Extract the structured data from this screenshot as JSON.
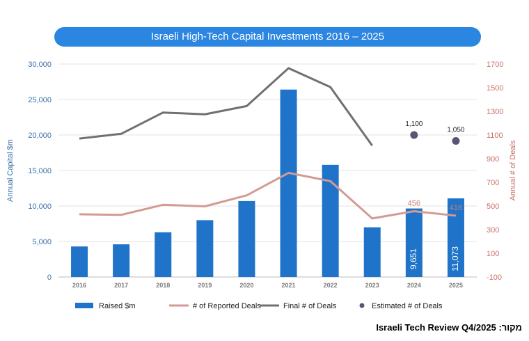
{
  "chart_data": {
    "type": "bar",
    "title": "Israeli High-Tech Capital Investments  2016 – 2025",
    "categories": [
      "2016",
      "2017",
      "2018",
      "2019",
      "2020",
      "2021",
      "2022",
      "2023",
      "2024",
      "2025"
    ],
    "series": [
      {
        "name": "Raised $m",
        "type": "bar",
        "axis": "left",
        "color": "#1f73c8",
        "values": [
          4300,
          4600,
          6300,
          8000,
          10700,
          26400,
          15800,
          7000,
          9651,
          11073
        ]
      },
      {
        "name": "# of Reported Deals",
        "type": "line",
        "axis": "right",
        "color": "#d49a94",
        "values": [
          430,
          425,
          510,
          497,
          590,
          780,
          710,
          395,
          456,
          418
        ]
      },
      {
        "name": "Final # of Deals",
        "type": "line",
        "axis": "right",
        "color": "#707070",
        "values": [
          1070,
          1110,
          1290,
          1275,
          1345,
          1665,
          1505,
          1010,
          null,
          null
        ]
      },
      {
        "name": "Estimated # of Deals",
        "type": "scatter",
        "axis": "right",
        "color": "#5a5575",
        "values": [
          null,
          null,
          null,
          null,
          null,
          null,
          null,
          null,
          1100,
          1050
        ]
      }
    ],
    "bar_labels": [
      {
        "index": 8,
        "text": "9,651"
      },
      {
        "index": 9,
        "text": "11,073"
      }
    ],
    "reported_labels": [
      {
        "index": 8,
        "text": "456"
      },
      {
        "index": 9,
        "text": "418"
      }
    ],
    "estimated_labels": [
      {
        "index": 8,
        "text": "1,100"
      },
      {
        "index": 9,
        "text": "1,050"
      }
    ],
    "ylabel": "Annual Capital $m",
    "y2label": "Annual # of Deals",
    "ylim": [
      0,
      30000
    ],
    "y2lim": [
      -100,
      1700
    ],
    "yticks": [
      0,
      5000,
      10000,
      15000,
      20000,
      25000,
      30000
    ],
    "yticklabels": [
      "0",
      "5,000",
      "10,000",
      "15,000",
      "20,000",
      "25,000",
      "30,000"
    ],
    "y2ticks": [
      -100,
      100,
      300,
      500,
      700,
      900,
      1100,
      1300,
      1500,
      1700
    ],
    "y2ticklabels": [
      "-100",
      "100",
      "300",
      "500",
      "700",
      "900",
      "1100",
      "1300",
      "1500",
      "1700"
    ],
    "grid": true,
    "legend_position": "bottom"
  },
  "source": "מקור: Israeli Tech Review Q4/2025"
}
